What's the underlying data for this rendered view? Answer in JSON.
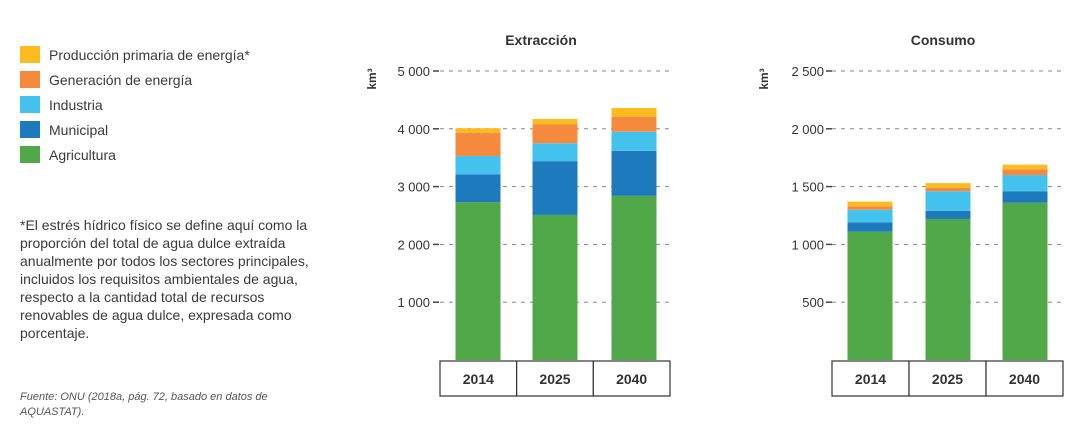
{
  "legend": {
    "items": [
      {
        "label": "Producción primaria de energía*",
        "color": "#FDBB1E"
      },
      {
        "label": "Generación de energía",
        "color": "#F58A3C"
      },
      {
        "label": "Industria",
        "color": "#43C2EE"
      },
      {
        "label": "Municipal",
        "color": "#1C7ABD"
      },
      {
        "label": "Agricultura",
        "color": "#51A848"
      }
    ]
  },
  "note": "*El estrés hídrico físico se define aquí como la proporción del total de agua dulce extraída anualmente por todos los sectores principales, incluidos los requisitos ambientales de agua, respecto a la cantidad total de recursos renovables de agua dulce, expresada como porcentaje.",
  "source": "Fuente: ONU (2018a, pág. 72, basado en datos de AQUASTAT).",
  "chart_data": [
    {
      "type": "bar",
      "stacked": true,
      "title": "Extracción",
      "ylabel": "km³",
      "ylim": [
        0,
        5000
      ],
      "yticks": [
        1000,
        2000,
        3000,
        4000,
        5000
      ],
      "ytick_labels": [
        "1 000",
        "2 000",
        "3 000",
        "4 000",
        "5 000"
      ],
      "categories": [
        "2014",
        "2025",
        "2040"
      ],
      "series": [
        {
          "name": "Agricultura",
          "color": "#51A848",
          "values": [
            2730,
            2510,
            2840
          ]
        },
        {
          "name": "Municipal",
          "color": "#1C7ABD",
          "values": [
            480,
            930,
            780
          ]
        },
        {
          "name": "Industria",
          "color": "#43C2EE",
          "values": [
            320,
            310,
            330
          ]
        },
        {
          "name": "Generación de energía",
          "color": "#F58A3C",
          "values": [
            400,
            330,
            260
          ]
        },
        {
          "name": "Producción primaria de energía*",
          "color": "#FDBB1E",
          "values": [
            80,
            90,
            150
          ]
        }
      ]
    },
    {
      "type": "bar",
      "stacked": true,
      "title": "Consumo",
      "ylabel": "km³",
      "ylim": [
        0,
        2500
      ],
      "yticks": [
        500,
        1000,
        1500,
        2000,
        2500
      ],
      "ytick_labels": [
        "500",
        "1 000",
        "1 500",
        "2 000",
        "2 500"
      ],
      "categories": [
        "2014",
        "2025",
        "2040"
      ],
      "series": [
        {
          "name": "Agricultura",
          "color": "#51A848",
          "values": [
            1110,
            1220,
            1360
          ]
        },
        {
          "name": "Municipal",
          "color": "#1C7ABD",
          "values": [
            80,
            70,
            100
          ]
        },
        {
          "name": "Industria",
          "color": "#43C2EE",
          "values": [
            110,
            170,
            140
          ]
        },
        {
          "name": "Generación de energía",
          "color": "#F58A3C",
          "values": [
            30,
            30,
            50
          ]
        },
        {
          "name": "Producción primaria de energía*",
          "color": "#FDBB1E",
          "values": [
            40,
            40,
            40
          ]
        }
      ]
    }
  ]
}
